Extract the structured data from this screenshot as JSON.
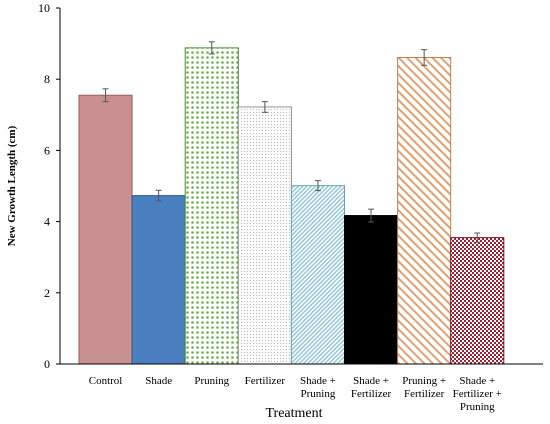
{
  "chart_data": {
    "type": "bar",
    "title": "",
    "xlabel": "Treatment",
    "ylabel": "New Growth Length (cm)",
    "ylim": [
      0,
      10
    ],
    "yticks": [
      "0",
      "2",
      "4",
      "6",
      "8",
      "10"
    ],
    "grid": false,
    "categories": [
      [
        "Control"
      ],
      [
        "Shade"
      ],
      [
        "Pruning"
      ],
      [
        "Fertilizer"
      ],
      [
        "Shade +",
        "Pruning"
      ],
      [
        "Shade +",
        "Fertilizer"
      ],
      [
        "Pruning +",
        "Fertilizer"
      ],
      [
        "Shade +",
        "Fertilizer +",
        "Pruning"
      ]
    ],
    "values": [
      7.55,
      4.73,
      8.88,
      7.22,
      5.01,
      4.17,
      8.61,
      3.55
    ],
    "errors": [
      0.18,
      0.15,
      0.17,
      0.15,
      0.14,
      0.18,
      0.22,
      0.13
    ],
    "bar_styles": [
      {
        "fill": "#c89090",
        "stroke": "#9a6060",
        "pattern": "none"
      },
      {
        "fill": "#4a7fc0",
        "stroke": "#2e5a90",
        "pattern": "none"
      },
      {
        "fill": "#6ab04c",
        "stroke": "#4a8a30",
        "pattern": "dots"
      },
      {
        "fill": "#c8c8c8",
        "stroke": "#909090",
        "pattern": "fine-dots"
      },
      {
        "fill": "#8ec4d8",
        "stroke": "#6aa0b8",
        "pattern": "diagonal-fine"
      },
      {
        "fill": "#000000",
        "stroke": "#000000",
        "pattern": "none"
      },
      {
        "fill": "#e0a070",
        "stroke": "#c08050",
        "pattern": "diagonal-wide"
      },
      {
        "fill": "#a02030",
        "stroke": "#801020",
        "pattern": "checker"
      }
    ]
  }
}
